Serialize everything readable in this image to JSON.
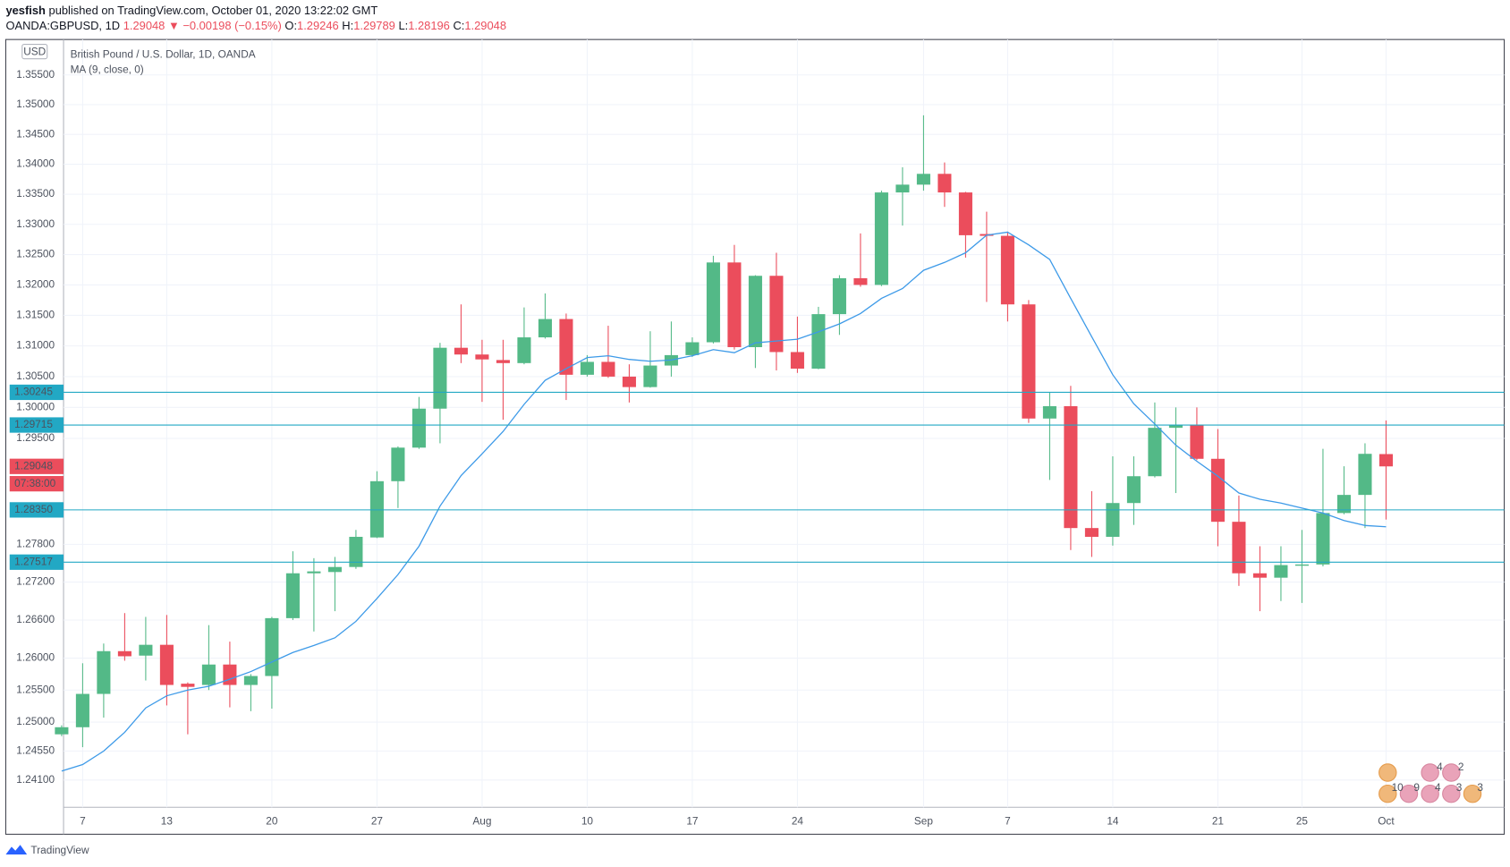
{
  "header": {
    "author": "yesfish",
    "published": "published on TradingView.com, October 01, 2020 13:22:02 GMT",
    "symbol": "OANDA:GBPUSD, 1D",
    "change": "▼ −0.00198 (−0.15%)",
    "ohlc_keys": [
      "O:",
      "H:",
      "L:",
      "C:"
    ]
  },
  "chart_data": {
    "type": "candlestick",
    "title": "British Pound / U.S. Dollar, 1D, OANDA",
    "currency": "USD",
    "x": [
      "07-06",
      "07-07",
      "07-08",
      "07-09",
      "07-10",
      "07-13",
      "07-14",
      "07-15",
      "07-16",
      "07-17",
      "07-20",
      "07-21",
      "07-22",
      "07-23",
      "07-24",
      "07-27",
      "07-28",
      "07-29",
      "07-30",
      "07-31",
      "08-03",
      "08-04",
      "08-05",
      "08-06",
      "08-07",
      "08-10",
      "08-11",
      "08-12",
      "08-13",
      "08-14",
      "08-17",
      "08-18",
      "08-19",
      "08-20",
      "08-21",
      "08-24",
      "08-25",
      "08-26",
      "08-27",
      "08-28",
      "08-31",
      "09-01",
      "09-02",
      "09-03",
      "09-04",
      "09-07",
      "09-08",
      "09-09",
      "09-10",
      "09-11",
      "09-14",
      "09-15",
      "09-16",
      "09-17",
      "09-18",
      "09-21",
      "09-22",
      "09-23",
      "09-24",
      "09-25",
      "09-28",
      "09-29",
      "09-30",
      "10-01"
    ],
    "open": [
      1.2481,
      1.2492,
      1.2544,
      1.2611,
      1.2604,
      1.2621,
      1.256,
      1.2558,
      1.259,
      1.2558,
      1.2572,
      1.2663,
      1.2734,
      1.2736,
      1.2744,
      1.2791,
      1.2881,
      1.2935,
      1.2998,
      1.3097,
      1.3086,
      1.3077,
      1.3072,
      1.3114,
      1.3144,
      1.3053,
      1.3074,
      1.305,
      1.3033,
      1.3068,
      1.3085,
      1.3106,
      1.3237,
      1.3098,
      1.3215,
      1.309,
      1.3063,
      1.3152,
      1.3211,
      1.32,
      1.3353,
      1.3366,
      1.3384,
      1.3353,
      1.3284,
      1.3281,
      1.3168,
      1.2982,
      1.3002,
      1.2806,
      1.2792,
      1.2846,
      1.2889,
      1.2967,
      1.2972,
      1.2917,
      1.2816,
      1.2734,
      1.2727,
      1.2746,
      1.2748,
      1.283,
      1.2859,
      1.29246
    ],
    "high": [
      1.2495,
      1.2592,
      1.2623,
      1.2671,
      1.2665,
      1.2668,
      1.2562,
      1.2652,
      1.2626,
      1.2575,
      1.2665,
      1.2769,
      1.2758,
      1.276,
      1.2803,
      1.2897,
      1.2937,
      1.3017,
      1.3105,
      1.3168,
      1.311,
      1.311,
      1.3163,
      1.3186,
      1.3153,
      1.3085,
      1.3133,
      1.307,
      1.3124,
      1.314,
      1.3114,
      1.3248,
      1.3266,
      1.3216,
      1.3253,
      1.3148,
      1.3164,
      1.3216,
      1.3285,
      1.3356,
      1.3395,
      1.3482,
      1.3403,
      1.3354,
      1.3321,
      1.3288,
      1.3175,
      1.3025,
      1.3035,
      1.2865,
      1.2921,
      1.2921,
      1.3008,
      1.3,
      1.3,
      1.2965,
      1.2858,
      1.2777,
      1.2777,
      1.2803,
      1.2933,
      1.2905,
      1.2942,
      1.29789
    ],
    "low": [
      1.2478,
      1.2461,
      1.2507,
      1.2596,
      1.2565,
      1.2526,
      1.2481,
      1.255,
      1.2523,
      1.2517,
      1.2521,
      1.266,
      1.2642,
      1.2674,
      1.2741,
      1.279,
      1.2838,
      1.2933,
      1.2942,
      1.3072,
      1.3009,
      1.298,
      1.307,
      1.3112,
      1.3012,
      1.305,
      1.3048,
      1.3008,
      1.3032,
      1.305,
      1.3082,
      1.3104,
      1.3094,
      1.3064,
      1.306,
      1.3056,
      1.3062,
      1.3118,
      1.3197,
      1.3198,
      1.3298,
      1.3356,
      1.3329,
      1.3245,
      1.3172,
      1.314,
      1.2975,
      1.2883,
      1.2771,
      1.276,
      1.2778,
      1.2811,
      1.2887,
      1.2862,
      1.2915,
      1.2777,
      1.2714,
      1.2674,
      1.269,
      1.2687,
      1.2745,
      1.2828,
      1.2806,
      1.28196
    ],
    "close": [
      1.2492,
      1.2544,
      1.2611,
      1.2603,
      1.2621,
      1.2558,
      1.2555,
      1.259,
      1.2558,
      1.2572,
      1.2663,
      1.2734,
      1.2737,
      1.2744,
      1.2792,
      1.2881,
      1.2935,
      1.2998,
      1.3097,
      1.3086,
      1.3078,
      1.3072,
      1.3114,
      1.3144,
      1.3053,
      1.3074,
      1.305,
      1.3033,
      1.3068,
      1.3085,
      1.3106,
      1.3237,
      1.3098,
      1.3215,
      1.309,
      1.3063,
      1.3152,
      1.3211,
      1.32,
      1.3353,
      1.3366,
      1.3384,
      1.3353,
      1.3282,
      1.3281,
      1.3168,
      1.2982,
      1.3002,
      1.2806,
      1.2792,
      1.2846,
      1.2889,
      1.2967,
      1.2972,
      1.2917,
      1.2816,
      1.2734,
      1.2727,
      1.2747,
      1.2748,
      1.283,
      1.2859,
      1.2925,
      1.29048
    ],
    "up_color": "#53b987",
    "down_color": "#eb4d5c",
    "series": [
      {
        "name": "MA (9, close, 0)",
        "color": "#3d9ae8",
        "values": [
          1.2424,
          1.2434,
          1.2455,
          1.2484,
          1.2522,
          1.2541,
          1.255,
          1.2556,
          1.2567,
          1.2579,
          1.2594,
          1.2609,
          1.262,
          1.2632,
          1.2658,
          1.2694,
          1.2732,
          1.2777,
          1.2841,
          1.289,
          1.2925,
          1.2961,
          1.3005,
          1.3044,
          1.3063,
          1.3081,
          1.3084,
          1.3078,
          1.3075,
          1.3077,
          1.3084,
          1.3094,
          1.3089,
          1.3105,
          1.3108,
          1.3111,
          1.3123,
          1.3136,
          1.3153,
          1.3178,
          1.3194,
          1.3224,
          1.3237,
          1.3253,
          1.3282,
          1.3287,
          1.3266,
          1.3242,
          1.3178,
          1.3115,
          1.3053,
          1.3006,
          1.2973,
          1.2939,
          1.2913,
          1.2889,
          1.2862,
          1.2852,
          1.2846,
          1.2838,
          1.283,
          1.2818,
          1.281,
          1.2808
        ]
      }
    ],
    "ylim": [
      1.2368,
      1.361
    ],
    "log": true,
    "grid": true,
    "yticks": [
      {
        "value": 1.355,
        "label": "1.35500"
      },
      {
        "value": 1.35,
        "label": "1.35000"
      },
      {
        "value": 1.345,
        "label": "1.34500"
      },
      {
        "value": 1.34,
        "label": "1.34000"
      },
      {
        "value": 1.335,
        "label": "1.33500"
      },
      {
        "value": 1.33,
        "label": "1.33000"
      },
      {
        "value": 1.325,
        "label": "1.32500"
      },
      {
        "value": 1.32,
        "label": "1.32000"
      },
      {
        "value": 1.315,
        "label": "1.31500"
      },
      {
        "value": 1.31,
        "label": "1.31000"
      },
      {
        "value": 1.305,
        "label": "1.30500"
      },
      {
        "value": 1.3,
        "label": "1.30000"
      },
      {
        "value": 1.295,
        "label": "1.29500"
      },
      {
        "value": 1.278,
        "label": "1.27800"
      },
      {
        "value": 1.272,
        "label": "1.27200"
      },
      {
        "value": 1.266,
        "label": "1.26600"
      },
      {
        "value": 1.26,
        "label": "1.26000"
      },
      {
        "value": 1.255,
        "label": "1.25500"
      },
      {
        "value": 1.25,
        "label": "1.25000"
      },
      {
        "value": 1.2455,
        "label": "1.24550"
      },
      {
        "value": 1.241,
        "label": "1.24100"
      }
    ],
    "xticks": [
      {
        "value": "07-07",
        "label": "7"
      },
      {
        "value": "07-13",
        "label": "13"
      },
      {
        "value": "07-20",
        "label": "20"
      },
      {
        "value": "07-27",
        "label": "27"
      },
      {
        "value": "08-03",
        "label": "Aug"
      },
      {
        "value": "08-10",
        "label": "10"
      },
      {
        "value": "08-17",
        "label": "17"
      },
      {
        "value": "08-24",
        "label": "24"
      },
      {
        "value": "09-01",
        "label": "Sep"
      },
      {
        "value": "09-07",
        "label": "7"
      },
      {
        "value": "09-14",
        "label": "14"
      },
      {
        "value": "09-21",
        "label": "21"
      },
      {
        "value": "09-25",
        "label": "25"
      },
      {
        "value": "10-01",
        "label": "Oct"
      }
    ],
    "hlines": [
      1.30245,
      1.29715,
      {
        "value": 1.2835,
        "label": "1.28350"
      },
      1.27517
    ],
    "hline_color": "#22a8c4",
    "countdown": "07:38:00"
  },
  "events": {
    "top": [
      "4",
      "2"
    ],
    "bottom": [
      "10",
      "9",
      "4",
      "3",
      "3"
    ]
  },
  "footer": {
    "brand": "TradingView"
  }
}
